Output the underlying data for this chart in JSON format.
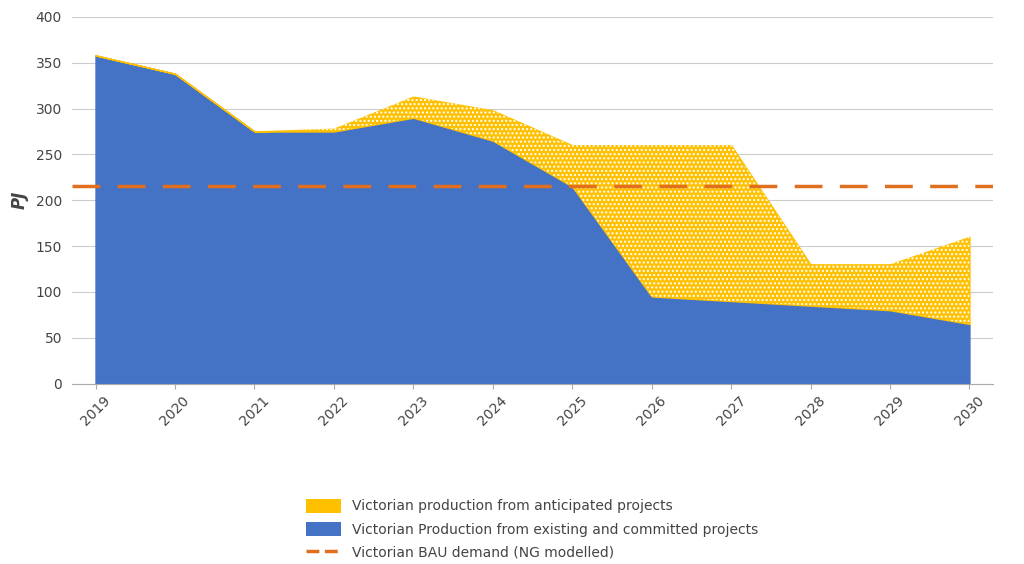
{
  "years": [
    2019,
    2020,
    2021,
    2022,
    2023,
    2024,
    2025,
    2026,
    2027,
    2028,
    2029,
    2030
  ],
  "blue_existing": [
    358,
    338,
    275,
    275,
    290,
    265,
    215,
    95,
    90,
    85,
    80,
    65
  ],
  "total_supply": [
    358,
    338,
    275,
    278,
    313,
    298,
    260,
    260,
    260,
    130,
    130,
    160
  ],
  "demand_line": 215,
  "blue_color": "#4472C4",
  "yellow_color": "#FFC000",
  "demand_color": "#E07020",
  "background_color": "#FFFFFF",
  "ylabel": "PJ",
  "ylim": [
    0,
    400
  ],
  "yticks": [
    0,
    50,
    100,
    150,
    200,
    250,
    300,
    350,
    400
  ],
  "legend_labels": [
    "Victorian production from anticipated projects",
    "Victorian Production from existing and committed projects",
    "Victorian BAU demand (NG modelled)"
  ],
  "axis_fontsize": 10,
  "legend_fontsize": 10
}
